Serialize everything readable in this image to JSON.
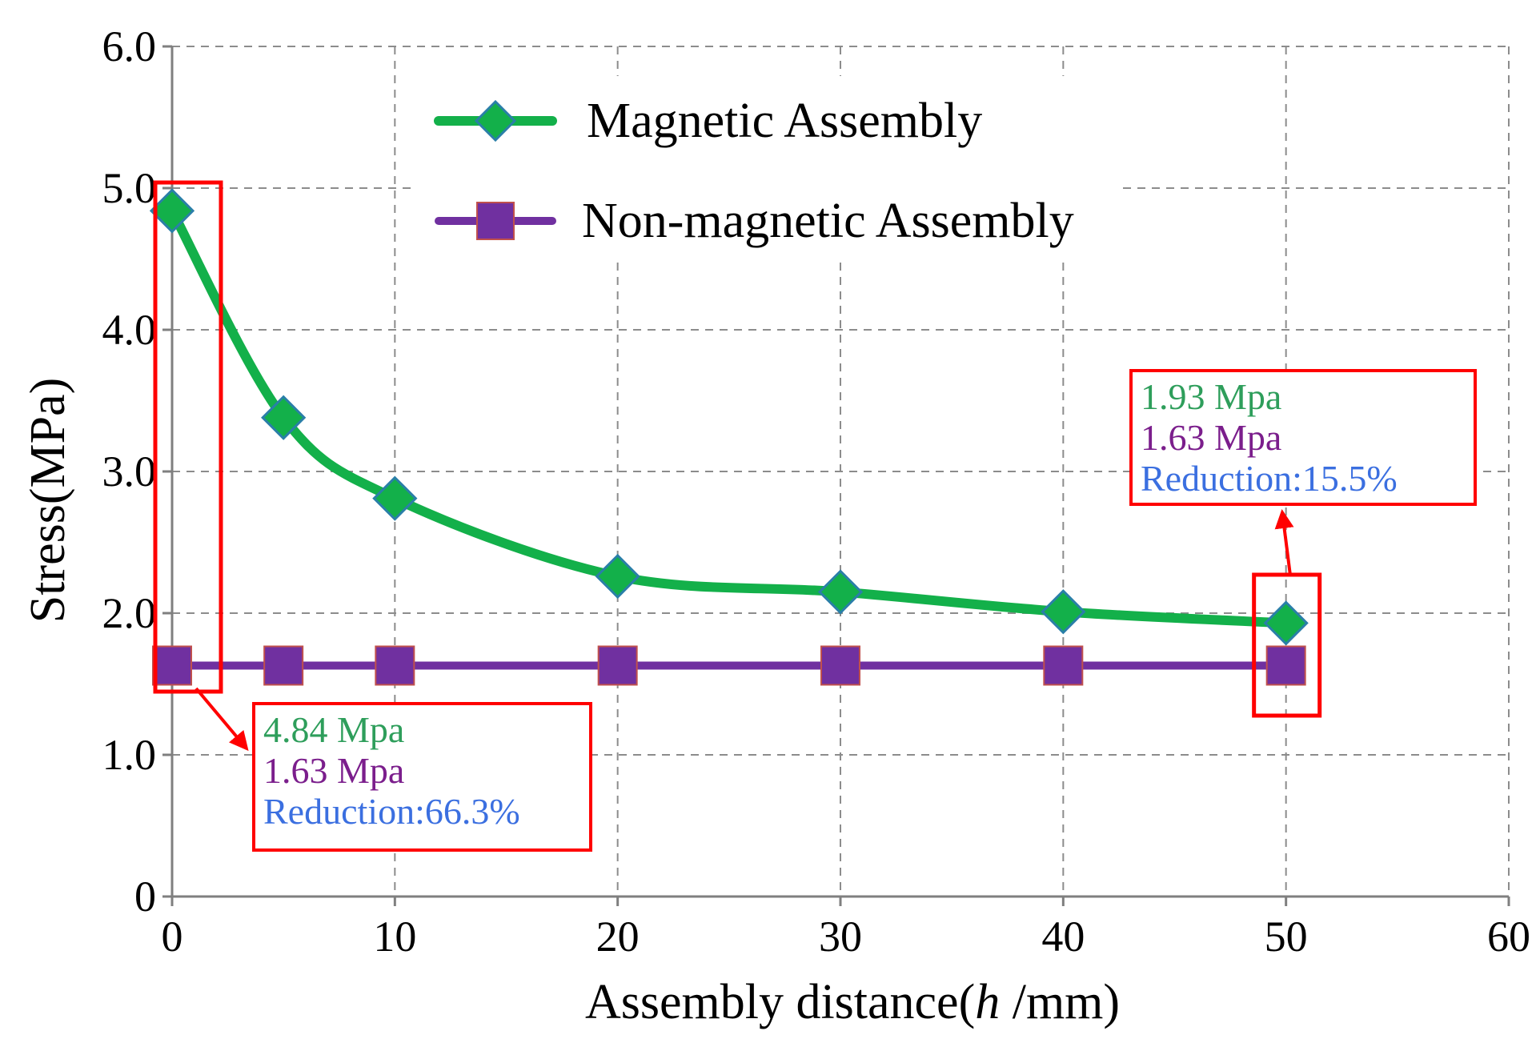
{
  "chart_data": {
    "type": "line",
    "x": [
      0,
      5,
      10,
      20,
      30,
      40,
      50
    ],
    "series": [
      {
        "name": "Magnetic Assembly",
        "values": [
          4.84,
          3.38,
          2.81,
          2.26,
          2.15,
          2.01,
          1.93
        ],
        "color": "#13b04a",
        "marker": "diamond"
      },
      {
        "name": "Non-magnetic Assembly",
        "values": [
          1.63,
          1.63,
          1.63,
          1.63,
          1.63,
          1.63,
          1.63
        ],
        "color": "#7030a0",
        "marker": "square"
      }
    ],
    "xlabel_prefix": "Assembly distance(",
    "xlabel_var": "h",
    "xlabel_suffix": " /mm)",
    "ylabel": "Stress(MPa)",
    "xlim": [
      0,
      60
    ],
    "ylim": [
      0,
      6
    ],
    "xticks": [
      0,
      10,
      20,
      30,
      40,
      50,
      60
    ],
    "xtick_labels": [
      "0",
      "10",
      "20",
      "30",
      "40",
      "50",
      "60"
    ],
    "yticks": [
      0,
      1,
      2,
      3,
      4,
      5,
      6
    ],
    "ytick_labels": [
      "0",
      "1.0",
      "2.0",
      "3.0",
      "4.0",
      "5.0",
      "6.0"
    ],
    "grid": true,
    "legend_position": "top-center",
    "annotations": [
      {
        "target_x": 0,
        "magnetic_text": "4.84 Mpa",
        "nonmagnetic_text": "1.63 Mpa",
        "reduction_text": "Reduction:66.3%"
      },
      {
        "target_x": 50,
        "magnetic_text": "1.93 Mpa",
        "nonmagnetic_text": "1.63 Mpa",
        "reduction_text": "Reduction:15.5%"
      }
    ],
    "annotation_colors": {
      "highlight": "#ff0000",
      "magnetic_text": "#2e9e5b",
      "nonmagnetic_text": "#7b1e8c",
      "reduction_text": "#3b6fe0"
    }
  }
}
